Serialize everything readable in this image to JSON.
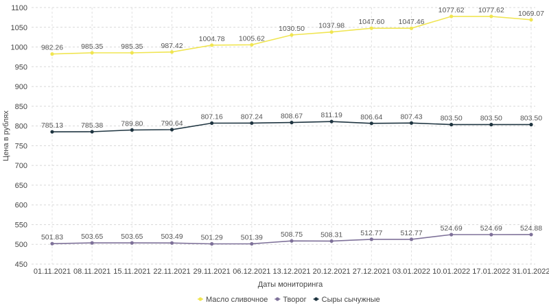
{
  "chart_data": {
    "type": "line",
    "title": "",
    "xlabel": "Даты мониторинга",
    "ylabel": "Цена в рублях",
    "ylim": [
      450,
      1100
    ],
    "yticks": [
      450,
      500,
      550,
      600,
      650,
      700,
      750,
      800,
      850,
      900,
      950,
      1000,
      1050,
      1100
    ],
    "grid": true,
    "legend_position": "bottom",
    "categories": [
      "01.11.2021",
      "08.11.2021",
      "15.11.2021",
      "22.11.2021",
      "29.11.2021",
      "06.12.2021",
      "13.12.2021",
      "20.12.2021",
      "27.12.2021",
      "03.01.2022",
      "10.01.2022",
      "17.01.2022",
      "31.01.2022"
    ],
    "series": [
      {
        "name": "Масло сливочное",
        "color": "#f0e551",
        "labels": [
          "982.26",
          "985.35",
          "985.35",
          "987.42",
          "1004.78",
          "1005.62",
          "1030.50",
          "1037.98",
          "1047.60",
          "1047.46",
          "1077.62",
          "1077.62",
          "1069.07"
        ],
        "values": [
          982.26,
          985.35,
          985.35,
          987.42,
          1004.78,
          1005.62,
          1030.5,
          1037.98,
          1047.6,
          1047.46,
          1077.62,
          1077.62,
          1069.07
        ]
      },
      {
        "name": "Творог",
        "color": "#7e7199",
        "labels": [
          "501.83",
          "503.65",
          "503.65",
          "503.49",
          "501.29",
          "501.39",
          "508.75",
          "508.31",
          "512.77",
          "512.77",
          "524.69",
          "524.69",
          "524.88"
        ],
        "values": [
          501.83,
          503.65,
          503.65,
          503.49,
          501.29,
          501.39,
          508.75,
          508.31,
          512.77,
          512.77,
          524.69,
          524.69,
          524.88
        ]
      },
      {
        "name": "Сыры сычужные",
        "color": "#1e3440",
        "labels": [
          "785.13",
          "785.38",
          "789.80",
          "790.64",
          "807.16",
          "807.24",
          "808.67",
          "811.19",
          "806.64",
          "807.43",
          "803.50",
          "803.50",
          "803.50"
        ],
        "values": [
          785.13,
          785.38,
          789.8,
          790.64,
          807.16,
          807.24,
          808.67,
          811.19,
          806.64,
          807.43,
          803.5,
          803.5,
          803.5
        ]
      }
    ]
  }
}
